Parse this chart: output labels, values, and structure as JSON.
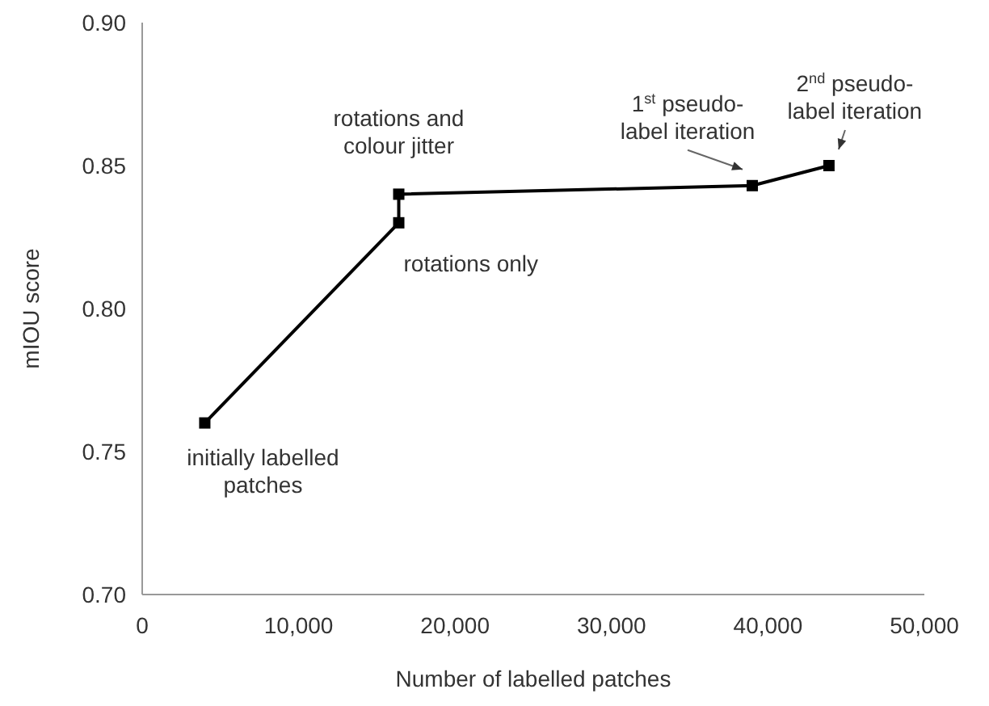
{
  "chart_data": {
    "type": "line",
    "xlabel": "Number of labelled patches",
    "ylabel": "mIOU score",
    "x": [
      4000,
      16400,
      16400,
      39000,
      43900
    ],
    "series": [
      {
        "color": "#000000",
        "values": [
          0.76,
          0.83,
          0.84,
          0.843,
          0.85
        ]
      }
    ],
    "xlim": [
      0,
      50000
    ],
    "xticks": [
      0,
      {
        "value": 10000,
        "label": "10,000"
      },
      {
        "value": 20000,
        "label": "20,000"
      },
      {
        "value": 30000,
        "label": "30,000"
      },
      {
        "value": 40000,
        "label": "40,000"
      },
      {
        "value": 50000,
        "label": "50,000"
      }
    ],
    "ylim": [
      0.7,
      0.9
    ],
    "yticks": [
      {
        "value": 0.7,
        "label": "0.70"
      },
      0.75,
      {
        "value": 0.8,
        "label": "0.80"
      },
      0.85,
      {
        "value": 0.9,
        "label": "0.90"
      }
    ],
    "grid": false,
    "marker": "square",
    "line_style": "solid",
    "annotations": [
      {
        "text": "initially labelled\npatches",
        "x": 4000,
        "y": 0.76
      },
      {
        "text": "rotations only",
        "x": 16400,
        "y": 0.83
      },
      {
        "text": "rotations and\ncolour jitter",
        "x": 16400,
        "y": 0.84
      },
      {
        "text": "1$^{st}$ pseudo-\nlabel iteration",
        "x": 39000,
        "y": 0.843
      },
      {
        "text": "2$^{nd}$ pseudo-\nlabel iteration",
        "x": 43900,
        "y": 0.85
      }
    ]
  }
}
